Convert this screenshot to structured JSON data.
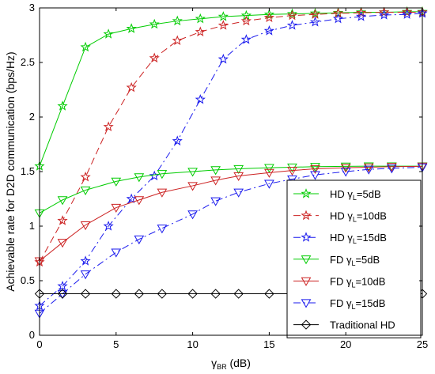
{
  "chart_data": {
    "type": "line",
    "xlabel": {
      "symbol": "γ",
      "sub": "BR",
      "unit": " (dB)"
    },
    "ylabel": "Achievable rate for D2D communication (bps/Hz)",
    "xlim": [
      0,
      25
    ],
    "ylim": [
      0,
      3
    ],
    "xticks": [
      0,
      5,
      10,
      15,
      20,
      25
    ],
    "yticks": [
      0,
      0.5,
      1,
      1.5,
      2,
      2.5,
      3
    ],
    "xtick_labels": [
      "0",
      "5",
      "10",
      "15",
      "20",
      "25"
    ],
    "ytick_labels": [
      "0",
      "0.5",
      "1",
      "1.5",
      "2",
      "2.5",
      "3"
    ],
    "grid": false,
    "legend_position": "lower-right",
    "series": [
      {
        "name": "HD γL=5dB",
        "legend": {
          "prefix": "HD ",
          "symbol": "γ",
          "sub": "L",
          "suffix": "=5dB"
        },
        "color": "#00cc00",
        "style": "solid",
        "marker": "pentagram",
        "x": [
          0,
          1.5,
          3,
          4.5,
          6,
          7.5,
          9,
          10.5,
          12,
          13.5,
          15,
          16.5,
          18,
          19.5,
          21,
          22.5,
          24,
          25
        ],
        "y": [
          1.55,
          2.1,
          2.64,
          2.76,
          2.81,
          2.85,
          2.88,
          2.9,
          2.92,
          2.93,
          2.94,
          2.945,
          2.95,
          2.955,
          2.96,
          2.96,
          2.965,
          2.965
        ]
      },
      {
        "name": "HD γL=10dB",
        "legend": {
          "prefix": "HD ",
          "symbol": "γ",
          "sub": "L",
          "suffix": "=10dB"
        },
        "color": "#cc2222",
        "style": "dashed",
        "marker": "pentagram",
        "x": [
          0,
          1.5,
          3,
          4.5,
          6,
          7.5,
          9,
          10.5,
          12,
          13.5,
          15,
          16.5,
          18,
          19.5,
          21,
          22.5,
          24,
          25
        ],
        "y": [
          0.67,
          1.05,
          1.45,
          1.91,
          2.27,
          2.54,
          2.7,
          2.78,
          2.84,
          2.88,
          2.91,
          2.93,
          2.94,
          2.95,
          2.955,
          2.96,
          2.96,
          2.96
        ]
      },
      {
        "name": "HD γL=15dB",
        "legend": {
          "prefix": "HD ",
          "symbol": "γ",
          "sub": "L",
          "suffix": "=15dB"
        },
        "color": "#1a1aee",
        "style": "dashdot",
        "marker": "pentagram",
        "x": [
          0,
          1.5,
          3,
          4.5,
          6,
          7.5,
          9,
          10.5,
          12,
          13.5,
          15,
          16.5,
          18,
          19.5,
          21,
          22.5,
          24,
          25
        ],
        "y": [
          0.27,
          0.45,
          0.68,
          1.0,
          1.25,
          1.46,
          1.78,
          2.16,
          2.53,
          2.71,
          2.79,
          2.84,
          2.87,
          2.9,
          2.92,
          2.935,
          2.94,
          2.95
        ]
      },
      {
        "name": "FD γL=5dB",
        "legend": {
          "prefix": "FD ",
          "symbol": "γ",
          "sub": "L",
          "suffix": "=5dB"
        },
        "color": "#00cc00",
        "style": "solid",
        "marker": "triangle-down",
        "x": [
          0,
          1.5,
          3,
          5,
          6.5,
          8,
          10,
          11.5,
          13,
          15,
          16.5,
          18,
          20,
          21.5,
          23,
          25
        ],
        "y": [
          1.12,
          1.24,
          1.33,
          1.41,
          1.45,
          1.48,
          1.5,
          1.515,
          1.525,
          1.535,
          1.54,
          1.545,
          1.548,
          1.55,
          1.55,
          1.55
        ]
      },
      {
        "name": "FD γL=10dB",
        "legend": {
          "prefix": "FD ",
          "symbol": "γ",
          "sub": "L",
          "suffix": "=10dB"
        },
        "color": "#cc2222",
        "style": "solid",
        "marker": "triangle-down",
        "x": [
          0,
          1.5,
          3,
          5,
          6.5,
          8,
          10,
          11.5,
          13,
          15,
          16.5,
          18,
          20,
          21.5,
          23,
          25
        ],
        "y": [
          0.68,
          0.85,
          1.01,
          1.17,
          1.24,
          1.31,
          1.37,
          1.42,
          1.46,
          1.49,
          1.51,
          1.525,
          1.535,
          1.54,
          1.545,
          1.548
        ]
      },
      {
        "name": "FD γL=15dB",
        "legend": {
          "prefix": "FD ",
          "symbol": "γ",
          "sub": "L",
          "suffix": "=15dB"
        },
        "color": "#1a1aee",
        "style": "dashdot",
        "marker": "triangle-down",
        "x": [
          0,
          1.5,
          3,
          5,
          6.5,
          8,
          10,
          11.5,
          13,
          15,
          16.5,
          18,
          20,
          21.5,
          23,
          25
        ],
        "y": [
          0.2,
          0.38,
          0.56,
          0.76,
          0.88,
          0.98,
          1.11,
          1.23,
          1.31,
          1.39,
          1.43,
          1.47,
          1.5,
          1.52,
          1.53,
          1.54
        ]
      },
      {
        "name": "Traditional HD",
        "legend": {
          "prefix": "Traditional HD",
          "symbol": "",
          "sub": "",
          "suffix": ""
        },
        "color": "#000000",
        "style": "solid",
        "marker": "diamond",
        "x": [
          0,
          1.5,
          3,
          5,
          6.5,
          8,
          10,
          11.5,
          13,
          15,
          16.5,
          18,
          20,
          21.5,
          23,
          25
        ],
        "y": [
          0.38,
          0.38,
          0.38,
          0.38,
          0.38,
          0.38,
          0.38,
          0.38,
          0.38,
          0.38,
          0.38,
          0.38,
          0.38,
          0.38,
          0.38,
          0.38
        ]
      }
    ]
  }
}
